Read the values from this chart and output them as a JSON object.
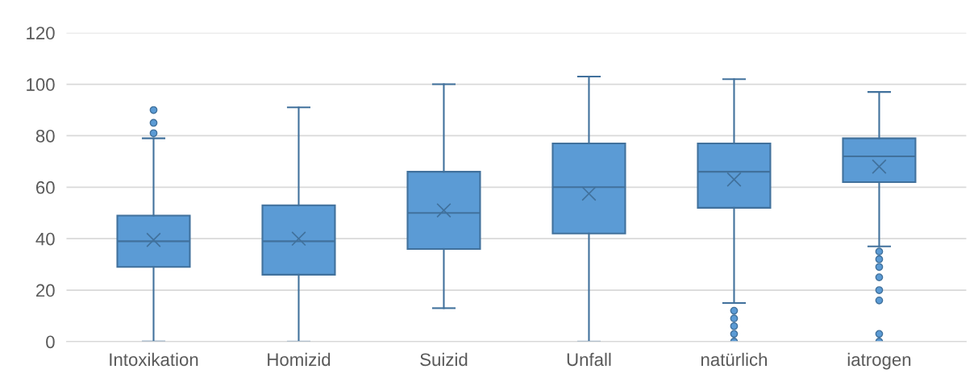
{
  "chart_data": {
    "type": "box",
    "categories": [
      "Intoxikation",
      "Homizid",
      "Suizid",
      "Unfall",
      "natürlich",
      "iatrogen"
    ],
    "color": "#5b9bd5",
    "boxes": [
      {
        "low": 0,
        "q1": 29,
        "median": 39,
        "q3": 49,
        "high": 79,
        "mean": 39.5,
        "outliers": [
          81,
          85,
          90
        ]
      },
      {
        "low": 0,
        "q1": 26,
        "median": 39,
        "q3": 53,
        "high": 91,
        "mean": 40
      },
      {
        "low": 13,
        "q1": 36,
        "median": 50,
        "q3": 66,
        "high": 100,
        "mean": 51
      },
      {
        "low": 0,
        "q1": 42,
        "median": 60,
        "q3": 77,
        "high": 103,
        "mean": 57.5
      },
      {
        "low": 15,
        "q1": 52,
        "median": 66,
        "q3": 77,
        "high": 102,
        "mean": 63,
        "outliers": [
          0,
          3,
          6,
          9,
          12
        ]
      },
      {
        "low": 37,
        "q1": 62,
        "median": 72,
        "q3": 79,
        "high": 97,
        "mean": 68,
        "outliers": [
          0,
          3,
          16,
          20,
          25,
          29,
          32,
          35
        ]
      }
    ],
    "ylim": [
      0,
      120
    ],
    "yticks": [
      0,
      20,
      40,
      60,
      80,
      100,
      120
    ],
    "grid": "y"
  }
}
